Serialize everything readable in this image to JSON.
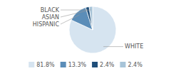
{
  "chart_data": {
    "type": "pie",
    "categories": [
      "WHITE",
      "HISPANIC",
      "ASIAN",
      "BLACK"
    ],
    "values": [
      81.8,
      13.3,
      2.4,
      2.4
    ],
    "value_labels": [
      "81.8%",
      "13.3%",
      "2.4%",
      "2.4%"
    ],
    "colors": [
      "#d6e4f0",
      "#5b8db8",
      "#1f4e79",
      "#a8c4d8"
    ],
    "legend": "bottom"
  }
}
